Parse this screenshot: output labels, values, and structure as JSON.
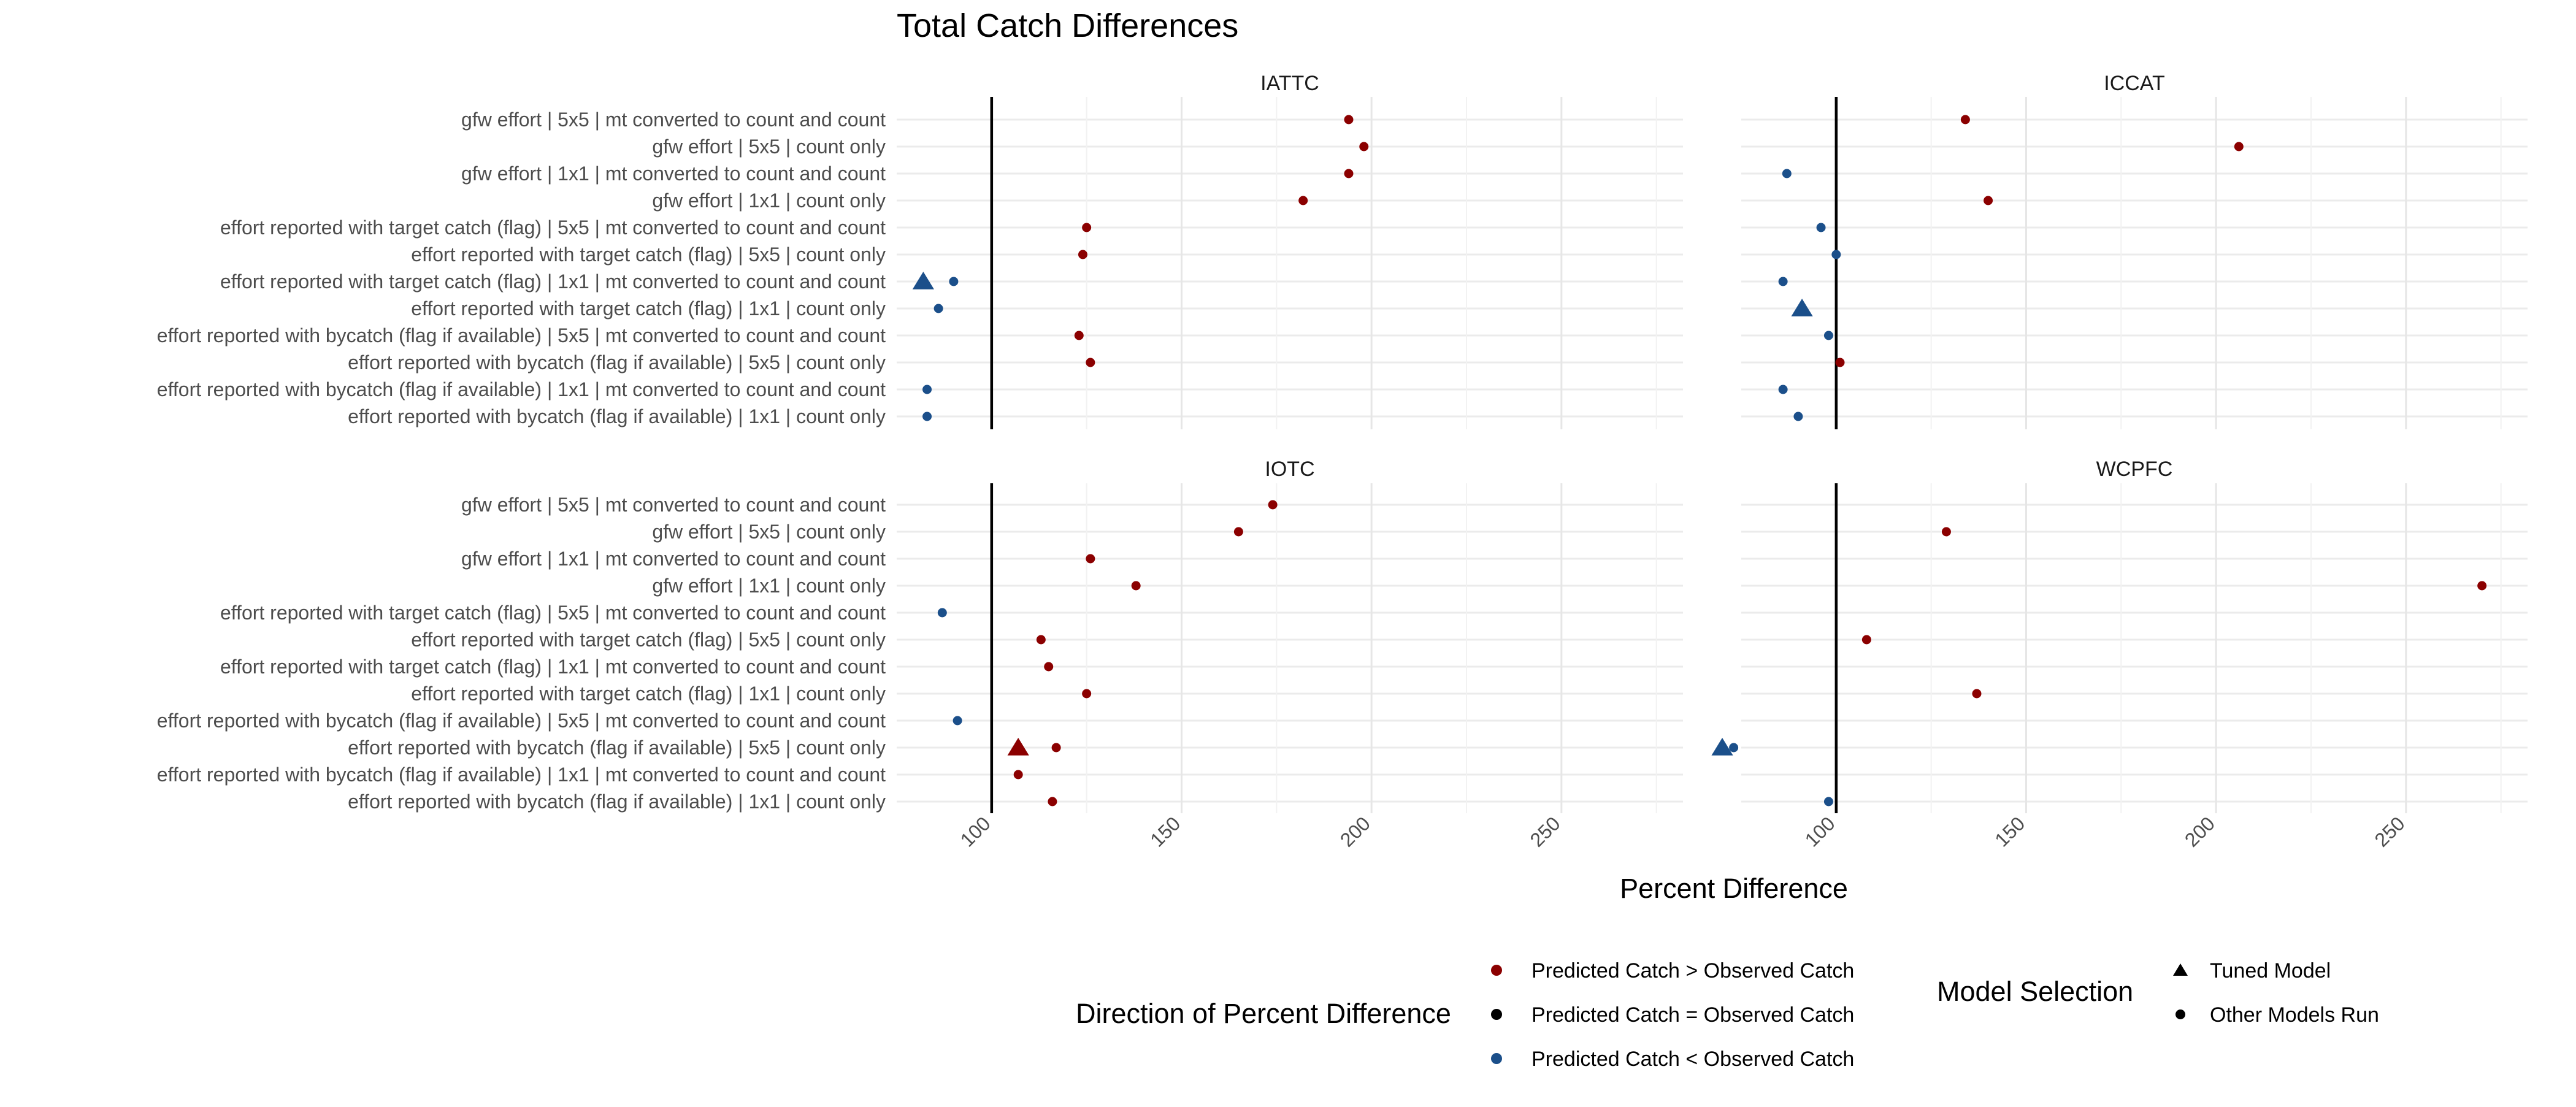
{
  "chart_data": {
    "type": "scatter",
    "title": "Total Catch Differences",
    "xlabel": "Percent Difference",
    "ylabel": "",
    "xlim": [
      75,
      282
    ],
    "x_ticks": [
      100,
      150,
      200,
      250
    ],
    "grid": true,
    "reference_line": 100,
    "facet_layout": "2x2",
    "categories": [
      "gfw effort | 5x5 | mt converted to count and count",
      "gfw effort | 5x5 | count only",
      "gfw effort | 1x1 | mt converted to count and count",
      "gfw effort | 1x1 | count only",
      "effort reported with target catch (flag) | 5x5 | mt converted to count and count",
      "effort reported with target catch (flag) | 5x5 | count only",
      "effort reported with target catch (flag) | 1x1 | mt converted to count and count",
      "effort reported with target catch (flag) | 1x1 | count only",
      "effort reported with bycatch (flag if available) | 5x5 | mt converted to count and count",
      "effort reported with bycatch (flag if available) | 5x5 | count only",
      "effort reported with bycatch (flag if available) | 1x1 | mt converted to count and count",
      "effort reported with bycatch (flag if available) | 1x1 | count only"
    ],
    "panels": [
      {
        "name": "IATTC",
        "points": [
          {
            "cat": 0,
            "x": 194,
            "dir": "greater",
            "shape": "circle"
          },
          {
            "cat": 1,
            "x": 198,
            "dir": "greater",
            "shape": "circle"
          },
          {
            "cat": 2,
            "x": 194,
            "dir": "greater",
            "shape": "circle"
          },
          {
            "cat": 3,
            "x": 182,
            "dir": "greater",
            "shape": "circle"
          },
          {
            "cat": 4,
            "x": 125,
            "dir": "greater",
            "shape": "circle"
          },
          {
            "cat": 5,
            "x": 124,
            "dir": "greater",
            "shape": "circle"
          },
          {
            "cat": 6,
            "x": 82,
            "dir": "less",
            "shape": "triangle"
          },
          {
            "cat": 6,
            "x": 90,
            "dir": "less",
            "shape": "circle"
          },
          {
            "cat": 7,
            "x": 86,
            "dir": "less",
            "shape": "circle"
          },
          {
            "cat": 8,
            "x": 123,
            "dir": "greater",
            "shape": "circle"
          },
          {
            "cat": 9,
            "x": 126,
            "dir": "greater",
            "shape": "circle"
          },
          {
            "cat": 10,
            "x": 83,
            "dir": "less",
            "shape": "circle"
          },
          {
            "cat": 11,
            "x": 83,
            "dir": "less",
            "shape": "circle"
          }
        ]
      },
      {
        "name": "ICCAT",
        "points": [
          {
            "cat": 0,
            "x": 134,
            "dir": "greater",
            "shape": "circle"
          },
          {
            "cat": 1,
            "x": 206,
            "dir": "greater",
            "shape": "circle"
          },
          {
            "cat": 2,
            "x": 87,
            "dir": "less",
            "shape": "circle"
          },
          {
            "cat": 3,
            "x": 140,
            "dir": "greater",
            "shape": "circle"
          },
          {
            "cat": 4,
            "x": 96,
            "dir": "less",
            "shape": "circle"
          },
          {
            "cat": 5,
            "x": 100,
            "dir": "less",
            "shape": "circle"
          },
          {
            "cat": 6,
            "x": 86,
            "dir": "less",
            "shape": "circle"
          },
          {
            "cat": 7,
            "x": 91,
            "dir": "less",
            "shape": "triangle"
          },
          {
            "cat": 8,
            "x": 98,
            "dir": "less",
            "shape": "circle"
          },
          {
            "cat": 9,
            "x": 101,
            "dir": "greater",
            "shape": "circle"
          },
          {
            "cat": 10,
            "x": 86,
            "dir": "less",
            "shape": "circle"
          },
          {
            "cat": 11,
            "x": 90,
            "dir": "less",
            "shape": "circle"
          }
        ]
      },
      {
        "name": "IOTC",
        "points": [
          {
            "cat": 0,
            "x": 174,
            "dir": "greater",
            "shape": "circle"
          },
          {
            "cat": 1,
            "x": 165,
            "dir": "greater",
            "shape": "circle"
          },
          {
            "cat": 2,
            "x": 126,
            "dir": "greater",
            "shape": "circle"
          },
          {
            "cat": 3,
            "x": 138,
            "dir": "greater",
            "shape": "circle"
          },
          {
            "cat": 4,
            "x": 87,
            "dir": "less",
            "shape": "circle"
          },
          {
            "cat": 5,
            "x": 113,
            "dir": "greater",
            "shape": "circle"
          },
          {
            "cat": 6,
            "x": 115,
            "dir": "greater",
            "shape": "circle"
          },
          {
            "cat": 7,
            "x": 125,
            "dir": "greater",
            "shape": "circle"
          },
          {
            "cat": 8,
            "x": 91,
            "dir": "less",
            "shape": "circle"
          },
          {
            "cat": 9,
            "x": 107,
            "dir": "greater",
            "shape": "triangle"
          },
          {
            "cat": 9,
            "x": 117,
            "dir": "greater",
            "shape": "circle"
          },
          {
            "cat": 10,
            "x": 107,
            "dir": "greater",
            "shape": "circle"
          },
          {
            "cat": 11,
            "x": 116,
            "dir": "greater",
            "shape": "circle"
          }
        ]
      },
      {
        "name": "WCPFC",
        "points": [
          {
            "cat": 1,
            "x": 129,
            "dir": "greater",
            "shape": "circle"
          },
          {
            "cat": 3,
            "x": 270,
            "dir": "greater",
            "shape": "circle"
          },
          {
            "cat": 5,
            "x": 108,
            "dir": "greater",
            "shape": "circle"
          },
          {
            "cat": 7,
            "x": 137,
            "dir": "greater",
            "shape": "circle"
          },
          {
            "cat": 9,
            "x": 70,
            "dir": "less",
            "shape": "triangle"
          },
          {
            "cat": 9,
            "x": 73,
            "dir": "less",
            "shape": "circle"
          },
          {
            "cat": 11,
            "x": 98,
            "dir": "less",
            "shape": "circle"
          }
        ]
      }
    ],
    "colors": {
      "greater": "#8b0000",
      "equal": "#000000",
      "less": "#1b4f8a"
    },
    "legends": [
      {
        "title": "Direction of Percent Difference",
        "items": [
          {
            "label": "Predicted Catch > Observed Catch",
            "color": "#8b0000",
            "shape": "circle"
          },
          {
            "label": "Predicted Catch = Observed Catch",
            "color": "#000000",
            "shape": "circle"
          },
          {
            "label": "Predicted Catch < Observed Catch",
            "color": "#1b4f8a",
            "shape": "circle"
          }
        ]
      },
      {
        "title": "Model Selection",
        "items": [
          {
            "label": "Tuned Model",
            "shape": "triangle"
          },
          {
            "label": "Other Models Run",
            "shape": "circle"
          }
        ]
      }
    ],
    "legend_position": "bottom"
  }
}
